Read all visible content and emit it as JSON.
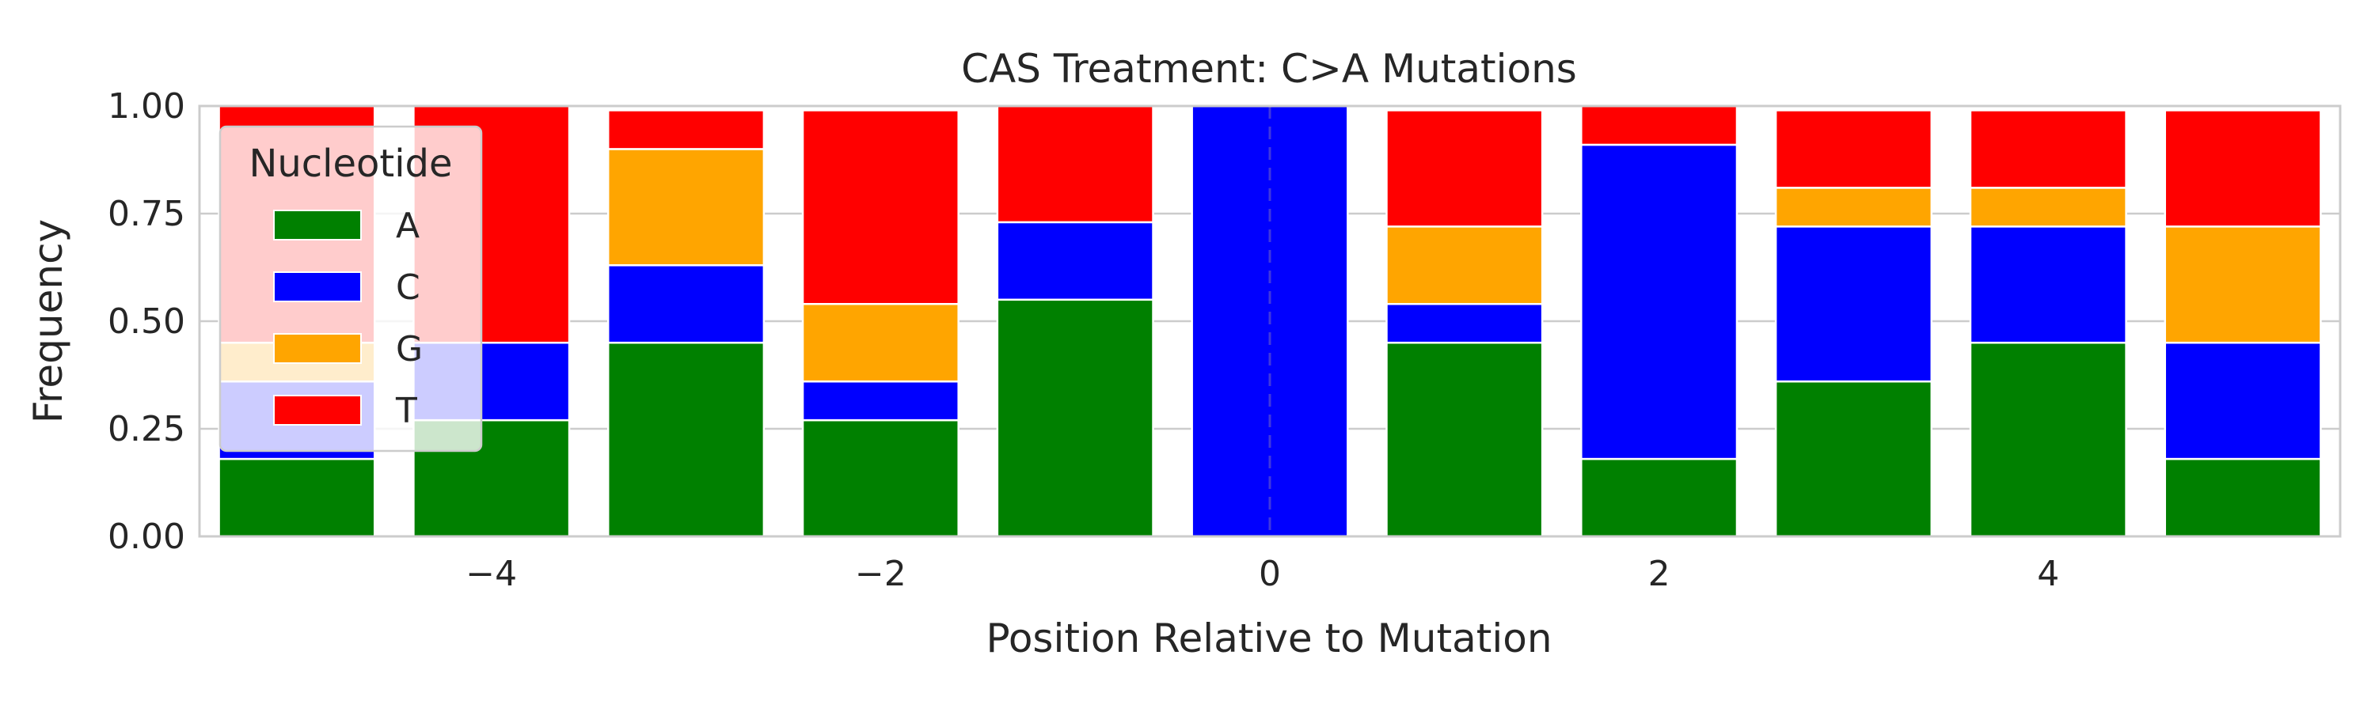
{
  "chart_data": {
    "type": "bar",
    "stacked": true,
    "title": "CAS Treatment: C>A Mutations",
    "xlabel": "Position Relative to Mutation",
    "ylabel": "Frequency",
    "xlim": [
      -5.5,
      5.5
    ],
    "ylim": [
      0,
      1
    ],
    "x": [
      -5,
      -4,
      -3,
      -2,
      -1,
      0,
      1,
      2,
      3,
      4,
      5
    ],
    "xticks": [
      -4,
      -2,
      0,
      2,
      4
    ],
    "xtick_labels": [
      "−4",
      "−2",
      "0",
      "2",
      "4"
    ],
    "yticks": [
      0,
      0.25,
      0.5,
      0.75,
      1.0
    ],
    "ytick_labels": [
      "0.00",
      "0.25",
      "0.50",
      "0.75",
      "1.00"
    ],
    "grid": true,
    "reference_line": {
      "x": 0,
      "style": "dashed"
    },
    "legend": {
      "title": "Nucleotide",
      "placement": "upper-left"
    },
    "series": [
      {
        "name": "A",
        "color": "#008000",
        "values": [
          0.18,
          0.27,
          0.45,
          0.27,
          0.55,
          0.0,
          0.45,
          0.18,
          0.36,
          0.45,
          0.18
        ]
      },
      {
        "name": "C",
        "color": "#0000ff",
        "values": [
          0.18,
          0.18,
          0.18,
          0.09,
          0.18,
          1.0,
          0.09,
          0.73,
          0.36,
          0.27,
          0.27
        ]
      },
      {
        "name": "G",
        "color": "#ffa500",
        "values": [
          0.09,
          0.0,
          0.27,
          0.18,
          0.0,
          0.0,
          0.18,
          0.0,
          0.09,
          0.09,
          0.27
        ]
      },
      {
        "name": "T",
        "color": "#ff0000",
        "values": [
          0.55,
          0.55,
          0.09,
          0.45,
          0.27,
          0.0,
          0.27,
          0.09,
          0.18,
          0.18,
          0.27
        ]
      }
    ]
  }
}
